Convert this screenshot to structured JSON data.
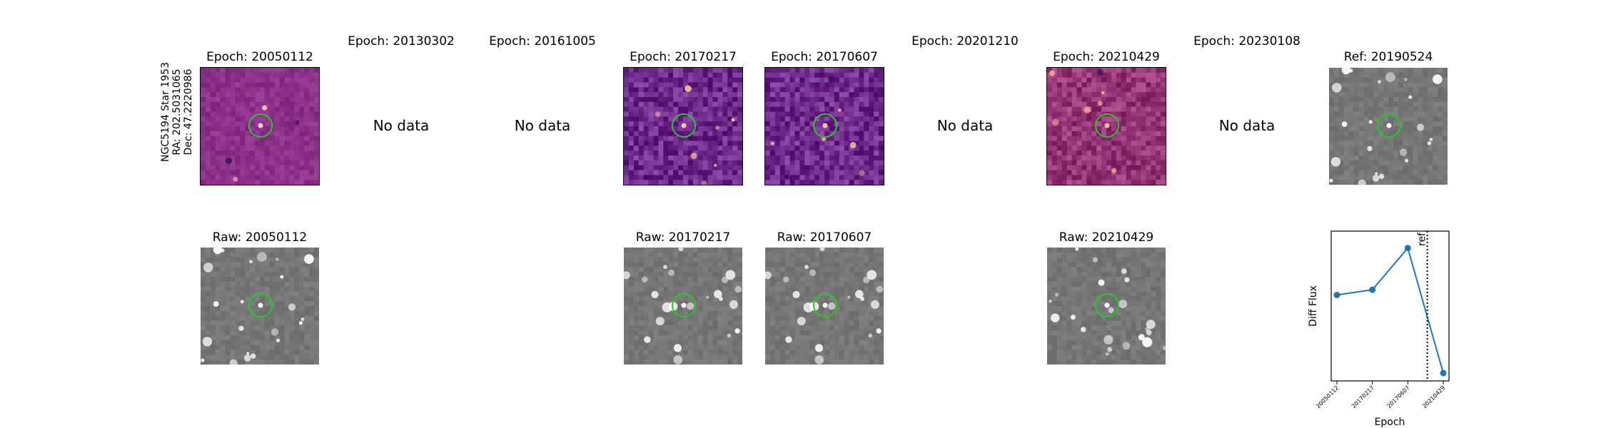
{
  "star": {
    "name": "NGC5194 Star 1953",
    "ra": "RA: 202.5031065",
    "dec": "Dec: 47.2220986"
  },
  "top_row": [
    {
      "title": "Epoch: 20050112",
      "has_data": true,
      "style": "diff-a"
    },
    {
      "title": "Epoch: 20130302",
      "has_data": false,
      "no_data_text": "No data"
    },
    {
      "title": "Epoch: 20161005",
      "has_data": false,
      "no_data_text": "No data"
    },
    {
      "title": "Epoch: 20170217",
      "has_data": true,
      "style": "diff-b"
    },
    {
      "title": "Epoch: 20170607",
      "has_data": true,
      "style": "diff-b"
    },
    {
      "title": "Epoch: 20201210",
      "has_data": false,
      "no_data_text": "No data"
    },
    {
      "title": "Epoch: 20210429",
      "has_data": true,
      "style": "diff-c"
    },
    {
      "title": "Epoch: 20230108",
      "has_data": false,
      "no_data_text": "No data"
    },
    {
      "title": "Ref: 20190524",
      "has_data": true,
      "style": "raw"
    }
  ],
  "bottom_row": [
    {
      "title": "Raw: 20050112"
    },
    {
      "title": "Raw: 20170217"
    },
    {
      "title": "Raw: 20170607"
    },
    {
      "title": "Raw: 20210429"
    }
  ],
  "colors": {
    "circle": "#22cc22",
    "diff_bg": "#8a2f8a",
    "raw_bg": "#7a7a7a",
    "series": "#1f77b4"
  },
  "chart_data": {
    "type": "line",
    "xlabel": "Epoch",
    "ylabel": "Diff Flux",
    "categories": [
      "20050112",
      "20170217",
      "20170607",
      "20210429"
    ],
    "series": [
      {
        "values": [
          0.46,
          0.5,
          0.82,
          -0.14
        ]
      }
    ],
    "ylim": [
      -0.2,
      0.95
    ],
    "ref_line": {
      "label": "ref",
      "position_between": [
        "20170607",
        "20210429"
      ],
      "fraction": 0.55
    },
    "grid": false,
    "legend": "none"
  }
}
